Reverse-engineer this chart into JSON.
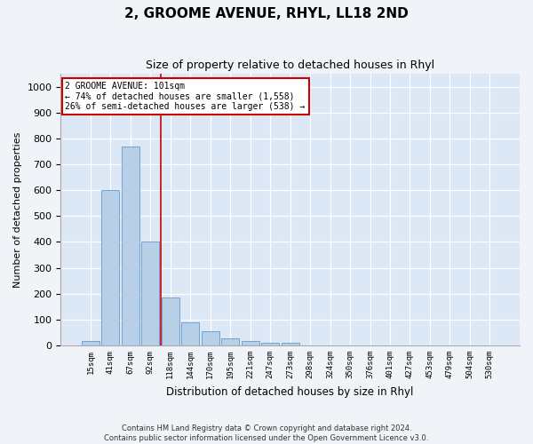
{
  "title": "2, GROOME AVENUE, RHYL, LL18 2ND",
  "subtitle": "Size of property relative to detached houses in Rhyl",
  "xlabel": "Distribution of detached houses by size in Rhyl",
  "ylabel": "Number of detached properties",
  "bar_color": "#b8cfe8",
  "bar_edge_color": "#6699cc",
  "background_color": "#dce8f5",
  "fig_background_color": "#f0f4f8",
  "grid_color": "#ffffff",
  "categories": [
    "15sqm",
    "41sqm",
    "67sqm",
    "92sqm",
    "118sqm",
    "144sqm",
    "170sqm",
    "195sqm",
    "221sqm",
    "247sqm",
    "273sqm",
    "298sqm",
    "324sqm",
    "350sqm",
    "376sqm",
    "401sqm",
    "427sqm",
    "453sqm",
    "479sqm",
    "504sqm",
    "530sqm"
  ],
  "values": [
    18,
    600,
    770,
    400,
    185,
    90,
    55,
    28,
    18,
    12,
    12,
    0,
    0,
    0,
    0,
    0,
    0,
    0,
    0,
    0,
    0
  ],
  "ylim_max": 1050,
  "yticks": [
    0,
    100,
    200,
    300,
    400,
    500,
    600,
    700,
    800,
    900,
    1000
  ],
  "property_line_x": 3.5,
  "annotation_line1": "2 GROOME AVENUE: 101sqm",
  "annotation_line2": "← 74% of detached houses are smaller (1,558)",
  "annotation_line3": "26% of semi-detached houses are larger (538) →",
  "annotation_box_color": "#ffffff",
  "annotation_border_color": "#cc0000",
  "vline_color": "#cc0000",
  "title_fontsize": 11,
  "subtitle_fontsize": 9,
  "footnote_line1": "Contains HM Land Registry data © Crown copyright and database right 2024.",
  "footnote_line2": "Contains public sector information licensed under the Open Government Licence v3.0."
}
